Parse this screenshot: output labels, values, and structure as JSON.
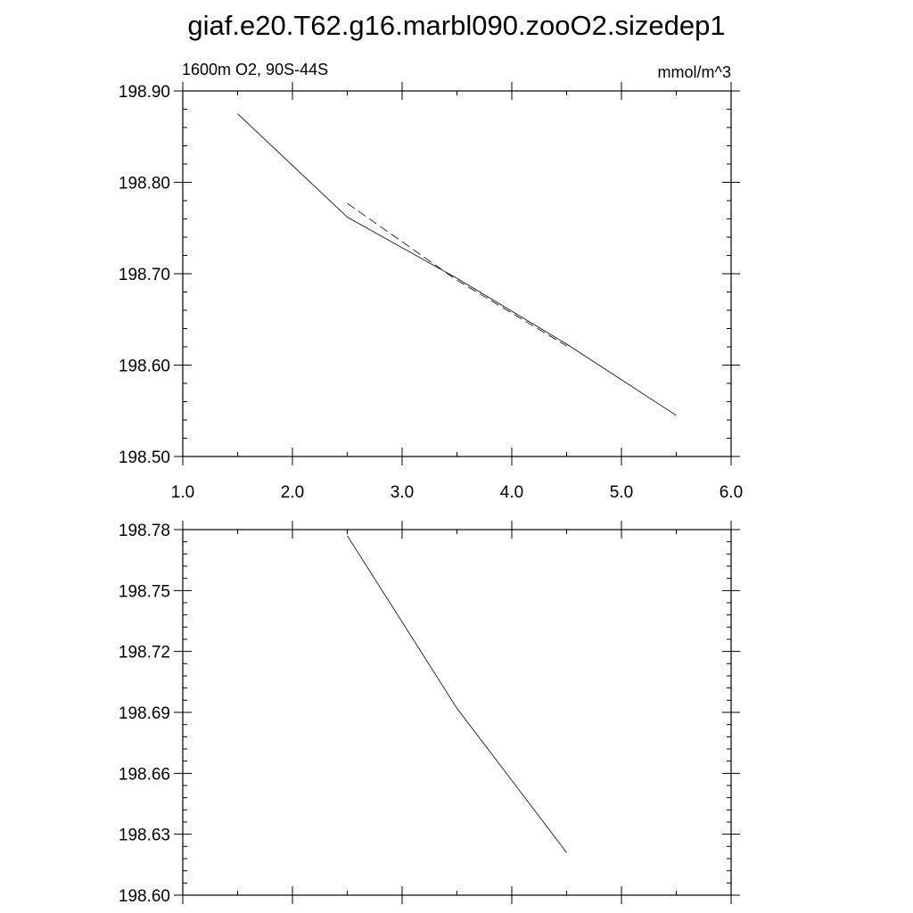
{
  "figure": {
    "title": "giaf.e20.T62.g16.marbl090.zooO2.sizedep1"
  },
  "chart_data": [
    {
      "type": "line",
      "left_label": "1600m O2, 90S-44S",
      "right_label": "mmol/m^3",
      "xlim": [
        1.0,
        6.0
      ],
      "ylim": [
        198.5,
        198.9
      ],
      "x_ticks": [
        1.0,
        2.0,
        3.0,
        4.0,
        5.0,
        6.0
      ],
      "x_tick_labels": [
        "1.0",
        "2.0",
        "3.0",
        "4.0",
        "5.0",
        "6.0"
      ],
      "y_ticks": [
        198.5,
        198.6,
        198.7,
        198.8,
        198.9
      ],
      "y_tick_labels": [
        "198.50",
        "198.60",
        "198.70",
        "198.80",
        "198.90"
      ],
      "grid": false,
      "series": [
        {
          "style": "solid",
          "x": [
            1.5,
            2.5,
            3.5,
            4.5,
            5.5
          ],
          "y": [
            198.875,
            198.762,
            198.695,
            198.623,
            198.545
          ]
        },
        {
          "style": "dashed",
          "x": [
            2.5,
            3.5,
            4.5
          ],
          "y": [
            198.777,
            198.693,
            198.621
          ]
        }
      ]
    },
    {
      "type": "line",
      "xlim": [
        1.0,
        6.0
      ],
      "ylim": [
        198.6,
        198.78
      ],
      "x_ticks": [
        1.0,
        2.0,
        3.0,
        4.0,
        5.0,
        6.0
      ],
      "x_tick_labels": [],
      "y_ticks": [
        198.6,
        198.63,
        198.66,
        198.69,
        198.72,
        198.75,
        198.78
      ],
      "y_tick_labels": [
        "198.60",
        "198.63",
        "198.66",
        "198.69",
        "198.72",
        "198.75",
        "198.78"
      ],
      "grid": false,
      "series": [
        {
          "style": "solid",
          "x": [
            2.5,
            3.5,
            4.5
          ],
          "y": [
            198.777,
            198.692,
            198.621
          ]
        }
      ]
    }
  ]
}
